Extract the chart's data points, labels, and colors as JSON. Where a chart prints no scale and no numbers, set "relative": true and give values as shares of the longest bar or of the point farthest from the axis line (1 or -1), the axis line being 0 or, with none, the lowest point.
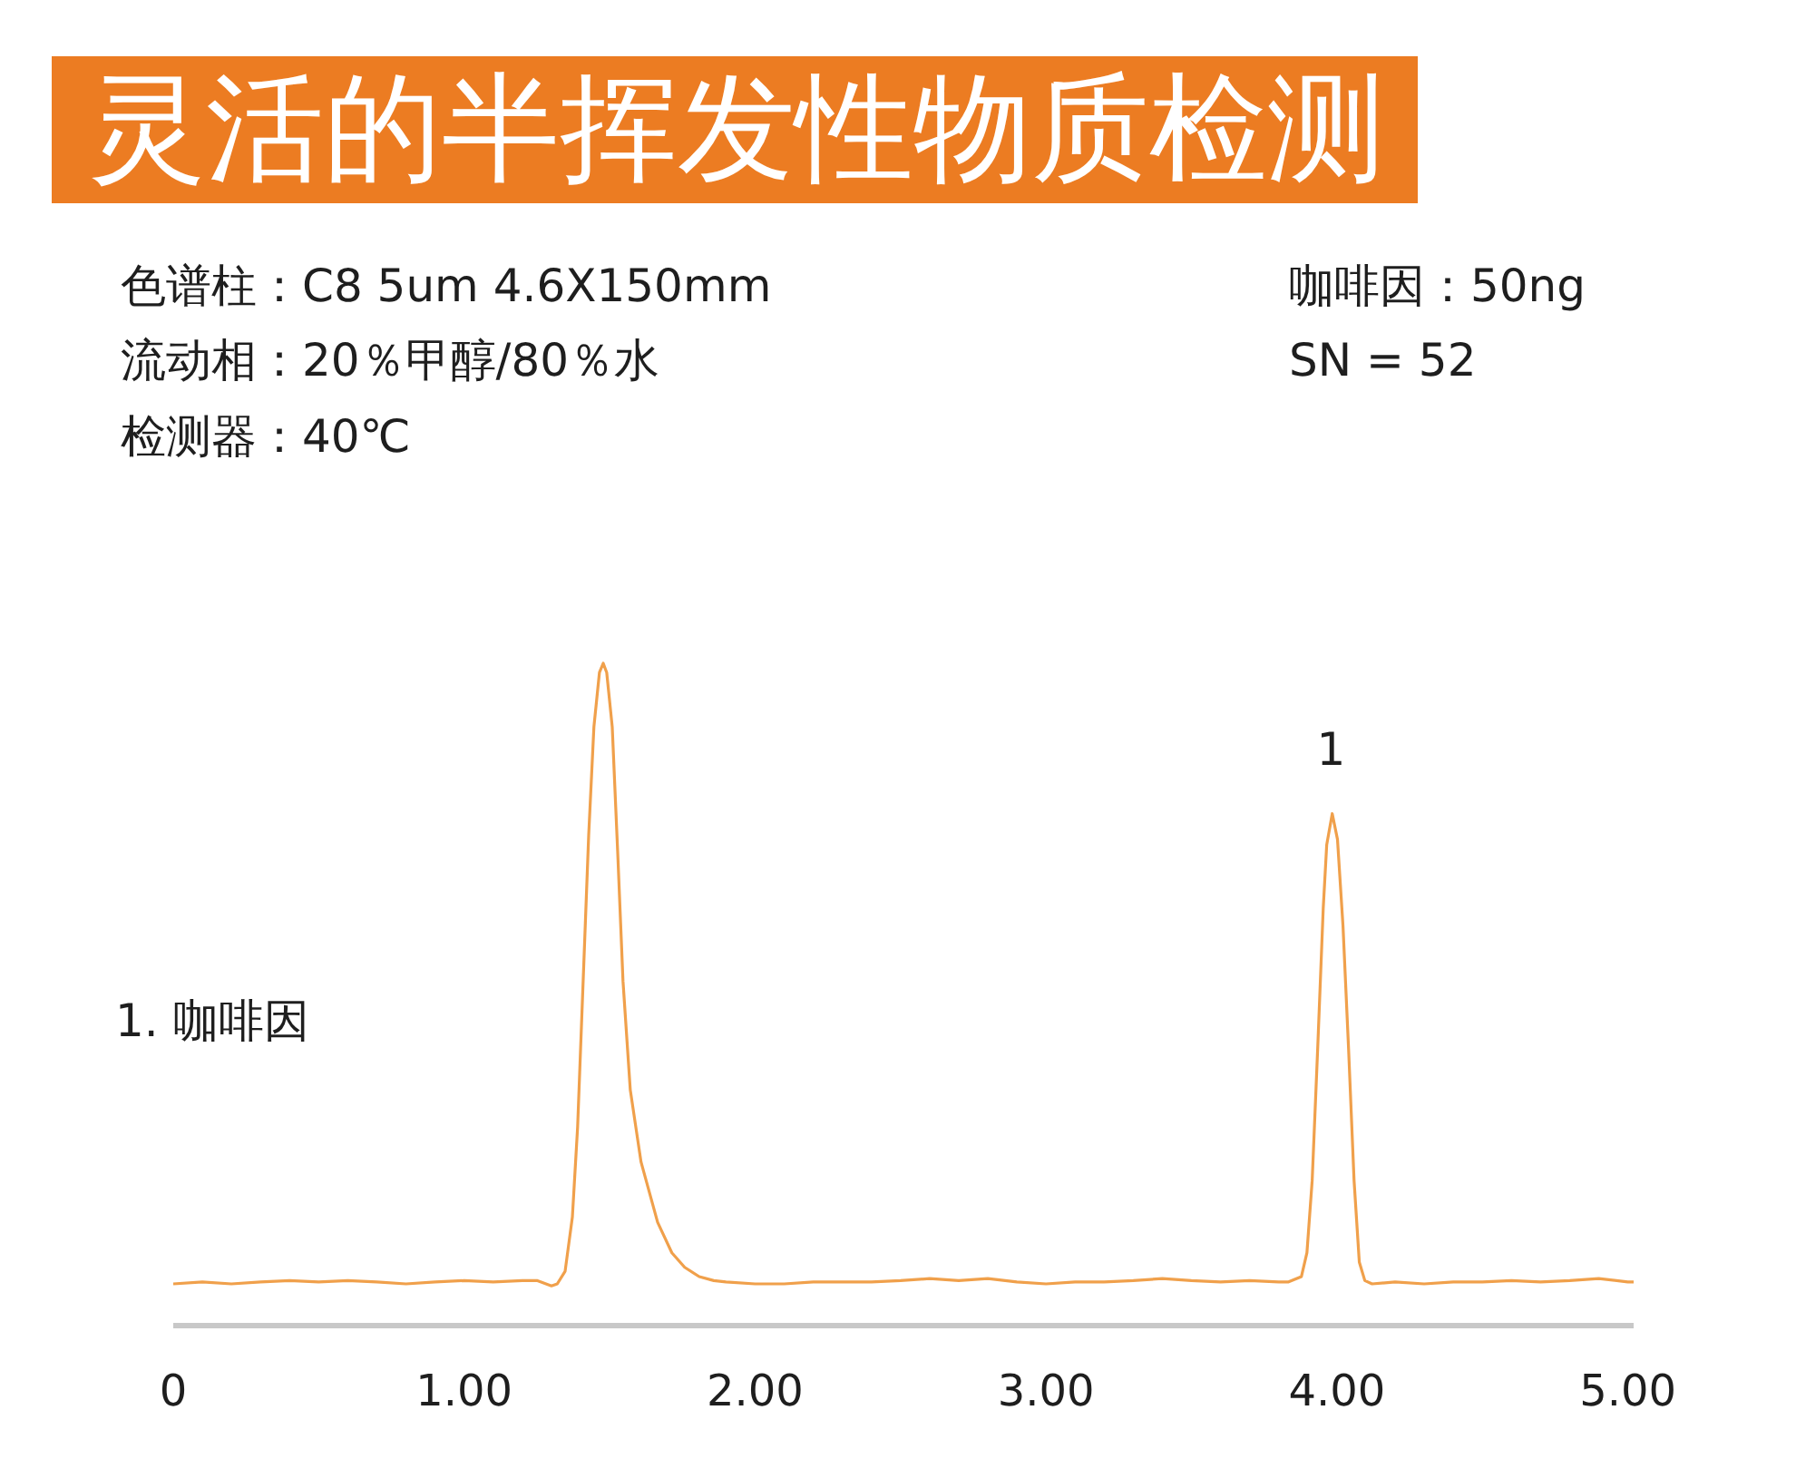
{
  "chart_data": {
    "type": "line",
    "title": "灵活的半挥发性物质检测",
    "annotations": [
      "色谱柱：C8 5um 4.6X150mm",
      "流动相：20％甲醇/80％水",
      "检测器：40℃",
      "咖啡因：50ng",
      "SN = 52",
      "1. 咖啡因",
      {
        "text": "1",
        "x": 3.98,
        "y": 0.773
      }
    ],
    "relative": true,
    "xlim": [
      0,
      5.02
    ],
    "xticks": [
      0,
      {
        "value": 1,
        "label": "1.00"
      },
      {
        "value": 2,
        "label": "2.00"
      },
      {
        "value": 3,
        "label": "3.00"
      },
      {
        "value": 4,
        "label": "4.00"
      },
      {
        "value": 5,
        "label": "5.00"
      }
    ],
    "tick_labels": "x",
    "series": [
      {
        "color": "#f0a04b",
        "x": [
          0,
          0.1,
          0.2,
          0.3,
          0.4,
          0.5,
          0.6,
          0.7,
          0.8,
          0.9,
          1.0,
          1.1,
          1.2,
          1.25,
          1.3,
          1.32,
          1.347,
          1.372,
          1.39,
          1.409,
          1.428,
          1.446,
          1.465,
          1.478,
          1.49,
          1.509,
          1.528,
          1.546,
          1.571,
          1.608,
          1.665,
          1.714,
          1.758,
          1.808,
          1.858,
          1.9,
          2.0,
          2.1,
          2.2,
          2.3,
          2.4,
          2.5,
          2.6,
          2.7,
          2.8,
          2.9,
          3.0,
          3.1,
          3.2,
          3.3,
          3.4,
          3.5,
          3.6,
          3.7,
          3.8,
          3.834,
          3.878,
          3.897,
          3.915,
          3.934,
          3.953,
          3.965,
          3.984,
          4.002,
          4.021,
          4.04,
          4.059,
          4.077,
          4.096,
          4.121,
          4.2,
          4.3,
          4.4,
          4.5,
          4.6,
          4.7,
          4.8,
          4.9,
          5.0,
          5.02
        ],
        "values": [
          0.063,
          0.066,
          0.063,
          0.066,
          0.068,
          0.066,
          0.068,
          0.066,
          0.063,
          0.066,
          0.068,
          0.066,
          0.068,
          0.068,
          0.06,
          0.063,
          0.082,
          0.164,
          0.3,
          0.52,
          0.74,
          0.904,
          0.986,
          1.0,
          0.986,
          0.904,
          0.712,
          0.52,
          0.356,
          0.247,
          0.156,
          0.11,
          0.088,
          0.074,
          0.068,
          0.066,
          0.063,
          0.063,
          0.066,
          0.066,
          0.066,
          0.068,
          0.071,
          0.068,
          0.071,
          0.066,
          0.063,
          0.066,
          0.066,
          0.068,
          0.071,
          0.068,
          0.066,
          0.068,
          0.066,
          0.066,
          0.074,
          0.11,
          0.219,
          0.419,
          0.63,
          0.726,
          0.773,
          0.734,
          0.603,
          0.419,
          0.219,
          0.096,
          0.068,
          0.063,
          0.066,
          0.063,
          0.066,
          0.066,
          0.068,
          0.066,
          0.068,
          0.071,
          0.066,
          0.066
        ]
      }
    ]
  }
}
